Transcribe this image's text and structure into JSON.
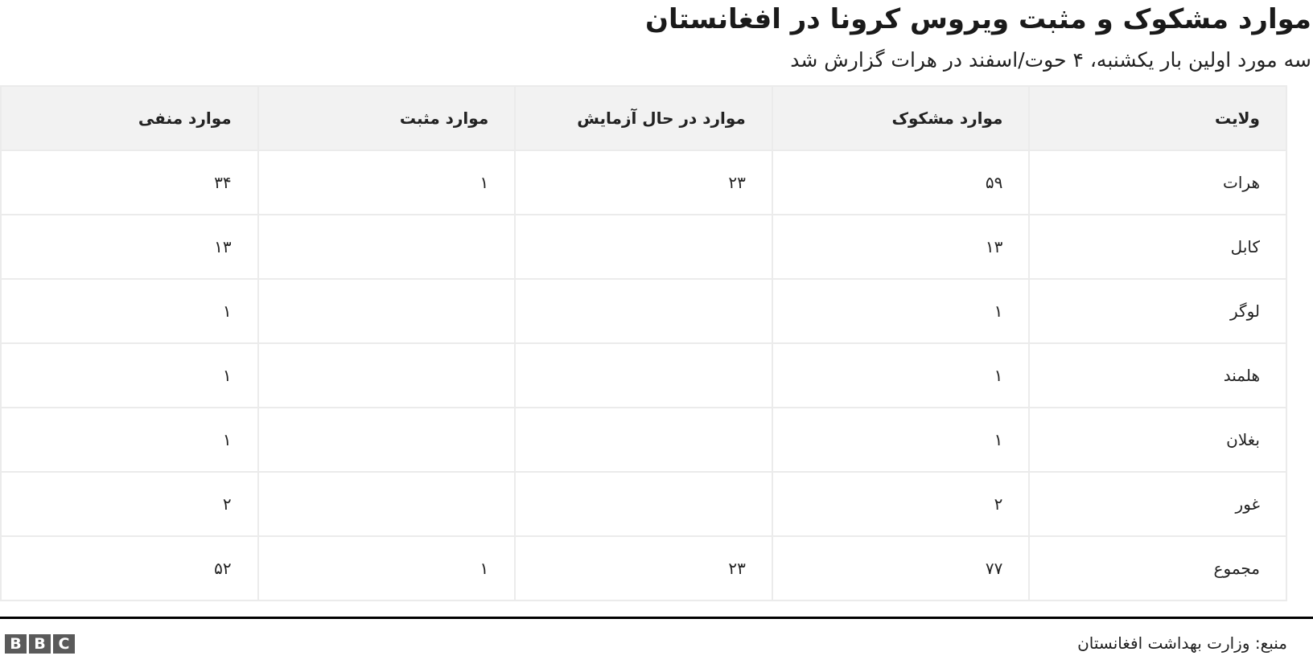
{
  "chart_data": {
    "type": "table",
    "title": "موارد مشکوک و مثبت ویروس کرونا در افغانستان",
    "subtitle": "سه مورد اولین بار یکشنبه، ۴ حوت/اسفند در هرات گزارش شد",
    "columns": [
      "ولایت",
      "موارد مشکوک",
      "موارد در حال آزمایش",
      "موارد مثبت",
      "موارد منفی"
    ],
    "rows": [
      [
        "هرات",
        "۵۹",
        "۲۳",
        "۱",
        "۳۴"
      ],
      [
        "کابل",
        "۱۳",
        "",
        "",
        "۱۳"
      ],
      [
        "لوگر",
        "۱",
        "",
        "",
        "۱"
      ],
      [
        "هلمند",
        "۱",
        "",
        "",
        "۱"
      ],
      [
        "بغلان",
        "۱",
        "",
        "",
        "۱"
      ],
      [
        "غور",
        "۲",
        "",
        "",
        "۲"
      ],
      [
        "مجموع",
        "۷۷",
        "۲۳",
        "۱",
        "۵۲"
      ]
    ]
  },
  "footer": {
    "source": "منبع: وزارت بهداشت افغانستان",
    "logo": "BBC"
  },
  "colors": {
    "header_bg": "#f2f2f2",
    "grid": "#ebebeb",
    "logo_bg": "#5a5a5a"
  }
}
